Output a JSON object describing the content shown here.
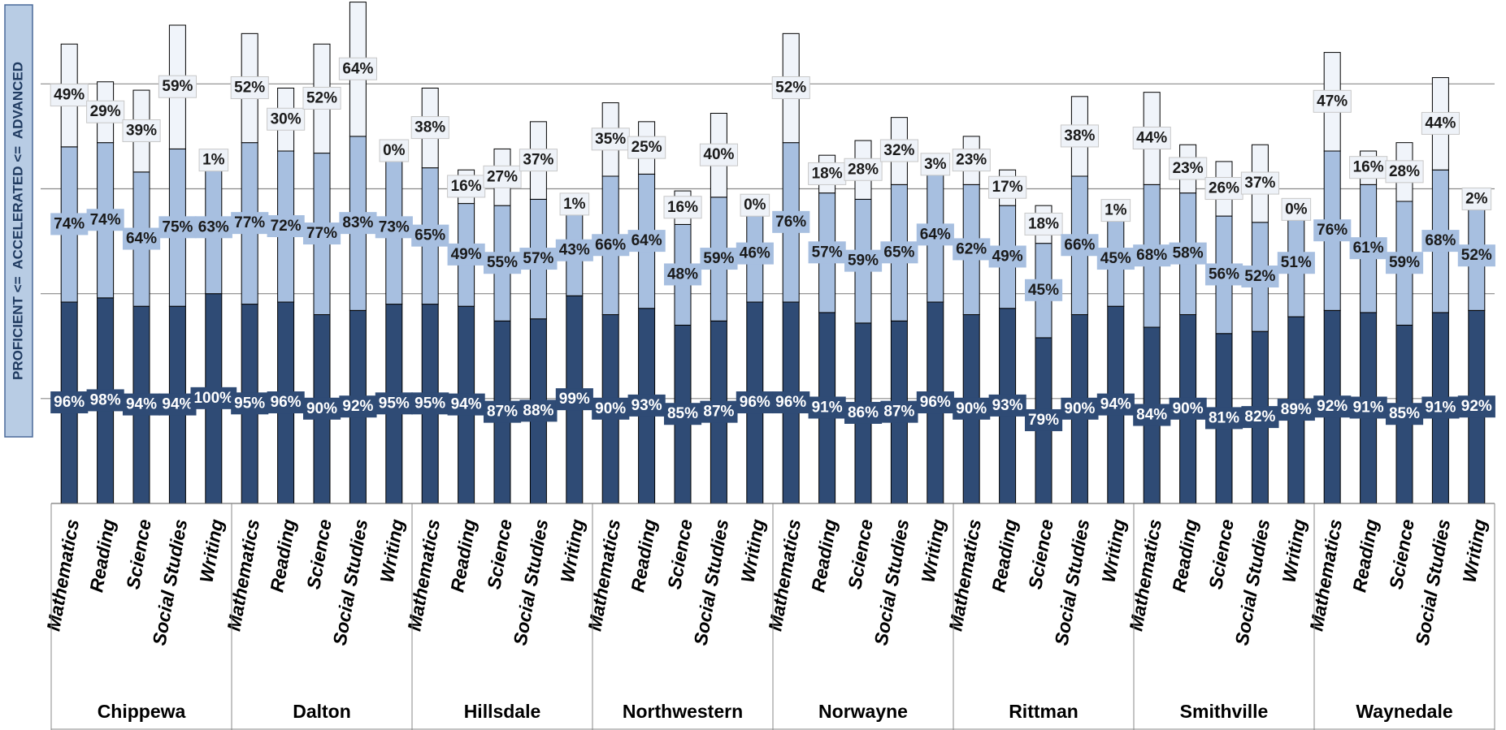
{
  "chart_data": {
    "type": "bar",
    "stacked": true,
    "y_axis_label": "PROFICIENT <=  ACCELERATED <=  ADVANCED",
    "groups": [
      "Chippewa",
      "Dalton",
      "Hillsdale",
      "Northwestern",
      "Norwayne",
      "Rittman",
      "Smithville",
      "Waynedale"
    ],
    "categories": [
      "Mathematics",
      "Reading",
      "Science",
      "Social Studies",
      "Writing",
      "Mathematics",
      "Reading",
      "Science",
      "Social Studies",
      "Writing",
      "Mathematics",
      "Reading",
      "Science",
      "Social Studies",
      "Writing",
      "Mathematics",
      "Reading",
      "Science",
      "Social Studies",
      "Writing",
      "Mathematics",
      "Reading",
      "Science",
      "Social Studies",
      "Writing",
      "Mathematics",
      "Reading",
      "Science",
      "Social Studies",
      "Writing",
      "Mathematics",
      "Reading",
      "Science",
      "Social Studies",
      "Writing",
      "Mathematics",
      "Reading",
      "Science",
      "Social Studies",
      "Writing"
    ],
    "ylim": [
      0,
      240
    ],
    "yticks": [
      50,
      100,
      150,
      200
    ],
    "grid": true,
    "series": [
      {
        "color": "#2f4b75",
        "label_color": "#ffffff",
        "values": [
          96,
          98,
          94,
          94,
          100,
          95,
          96,
          90,
          92,
          95,
          95,
          94,
          87,
          88,
          99,
          90,
          93,
          85,
          87,
          96,
          96,
          91,
          86,
          87,
          96,
          90,
          93,
          79,
          90,
          94,
          84,
          90,
          81,
          82,
          89,
          92,
          91,
          85,
          91,
          92
        ],
        "value_labels": [
          "96%",
          "98%",
          "94%",
          "94%",
          "100%",
          "95%",
          "96%",
          "90%",
          "92%",
          "95%",
          "95%",
          "94%",
          "87%",
          "88%",
          "99%",
          "90%",
          "93%",
          "85%",
          "87%",
          "96%",
          "96%",
          "91%",
          "86%",
          "87%",
          "96%",
          "90%",
          "93%",
          "79%",
          "90%",
          "94%",
          "84%",
          "90%",
          "81%",
          "82%",
          "89%",
          "92%",
          "91%",
          "85%",
          "91%",
          "92%"
        ]
      },
      {
        "color": "#a7bfe0",
        "label_color": "#1a1a1a",
        "values": [
          74,
          74,
          64,
          75,
          63,
          77,
          72,
          77,
          83,
          73,
          65,
          49,
          55,
          57,
          43,
          66,
          64,
          48,
          59,
          46,
          76,
          57,
          59,
          65,
          64,
          62,
          49,
          45,
          66,
          45,
          68,
          58,
          56,
          52,
          51,
          76,
          61,
          59,
          68,
          52
        ],
        "value_labels": [
          "74%",
          "74%",
          "64%",
          "75%",
          "63%",
          "77%",
          "72%",
          "77%",
          "83%",
          "73%",
          "65%",
          "49%",
          "55%",
          "57%",
          "43%",
          "66%",
          "64%",
          "48%",
          "59%",
          "46%",
          "76%",
          "57%",
          "59%",
          "65%",
          "64%",
          "62%",
          "49%",
          "45%",
          "66%",
          "45%",
          "68%",
          "58%",
          "56%",
          "52%",
          "51%",
          "76%",
          "61%",
          "59%",
          "68%",
          "52%"
        ]
      },
      {
        "color": "#f0f4fa",
        "label_color": "#1a1a1a",
        "values": [
          49,
          29,
          39,
          59,
          1,
          52,
          30,
          52,
          64,
          0,
          38,
          16,
          27,
          37,
          1,
          35,
          25,
          16,
          40,
          0,
          52,
          18,
          28,
          32,
          3,
          23,
          17,
          18,
          38,
          1,
          44,
          23,
          26,
          37,
          0,
          47,
          16,
          28,
          44,
          2
        ],
        "value_labels": [
          "49%",
          "29%",
          "39%",
          "59%",
          "1%",
          "52%",
          "30%",
          "52%",
          "64%",
          "0%",
          "38%",
          "16%",
          "27%",
          "37%",
          "1%",
          "35%",
          "25%",
          "16%",
          "40%",
          "0%",
          "52%",
          "18%",
          "28%",
          "32%",
          "3%",
          "23%",
          "17%",
          "18%",
          "38%",
          "1%",
          "44%",
          "23%",
          "26%",
          "37%",
          "0%",
          "47%",
          "16%",
          "28%",
          "44%",
          "2%"
        ]
      }
    ]
  }
}
